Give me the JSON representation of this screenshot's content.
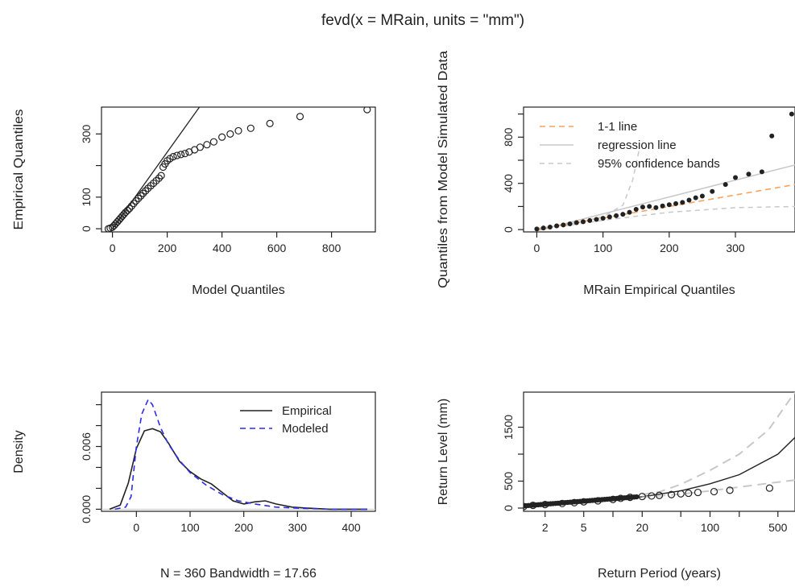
{
  "title": "fevd(x = MRain, units = \"mm\")",
  "colors": {
    "ink": "#222222",
    "orange": "#f5a25d",
    "grey": "#c8c8c8",
    "blue": "#2b2bf0"
  },
  "chart_data": [
    {
      "id": "qq-model",
      "type": "scatter",
      "xlabel": "Model Quantiles",
      "ylabel": "Empirical Quantiles",
      "xlim": [
        -40,
        960
      ],
      "ylim": [
        -10,
        385
      ],
      "xticks": [
        0,
        200,
        400,
        600,
        800
      ],
      "yticks": [
        0,
        100,
        200,
        300
      ],
      "ytick_labels": [
        "0",
        "100",
        "",
        "300"
      ],
      "marker": "open-circle",
      "points": [
        [
          -15,
          0
        ],
        [
          -8,
          2
        ],
        [
          0,
          5
        ],
        [
          6,
          10
        ],
        [
          12,
          16
        ],
        [
          18,
          22
        ],
        [
          24,
          28
        ],
        [
          30,
          34
        ],
        [
          36,
          40
        ],
        [
          42,
          46
        ],
        [
          48,
          52
        ],
        [
          55,
          58
        ],
        [
          62,
          64
        ],
        [
          70,
          72
        ],
        [
          78,
          80
        ],
        [
          86,
          88
        ],
        [
          95,
          96
        ],
        [
          104,
          104
        ],
        [
          112,
          112
        ],
        [
          121,
          120
        ],
        [
          130,
          128
        ],
        [
          140,
          136
        ],
        [
          150,
          144
        ],
        [
          160,
          152
        ],
        [
          170,
          160
        ],
        [
          178,
          168
        ],
        [
          185,
          195
        ],
        [
          192,
          205
        ],
        [
          200,
          215
        ],
        [
          210,
          222
        ],
        [
          222,
          228
        ],
        [
          236,
          232
        ],
        [
          250,
          235
        ],
        [
          265,
          238
        ],
        [
          280,
          243
        ],
        [
          300,
          250
        ],
        [
          320,
          258
        ],
        [
          345,
          266
        ],
        [
          370,
          275
        ],
        [
          400,
          290
        ],
        [
          430,
          300
        ],
        [
          460,
          310
        ],
        [
          505,
          318
        ],
        [
          575,
          333
        ],
        [
          685,
          355
        ],
        [
          930,
          377
        ]
      ],
      "fit_line": [
        [
          0,
          0
        ],
        [
          330,
          400
        ]
      ]
    },
    {
      "id": "qq-simulated",
      "type": "scatter",
      "xlabel": "MRain Empirical Quantiles",
      "ylabel": "Quantiles from Model Simulated Data",
      "xlim": [
        -20,
        390
      ],
      "ylim": [
        -20,
        1060
      ],
      "xticks": [
        0,
        100,
        200,
        300
      ],
      "yticks": [
        0,
        400,
        800
      ],
      "yticks_minor": [
        200,
        600,
        1000
      ],
      "marker": "filled-circle",
      "legend": {
        "position": "top-left",
        "entries": [
          "1-1 line",
          "regression line",
          "95% confidence bands"
        ],
        "colors": [
          "#f5a25d",
          "#c8c8c8",
          "#c8c8c8"
        ]
      },
      "points": [
        [
          0,
          5
        ],
        [
          10,
          14
        ],
        [
          20,
          22
        ],
        [
          30,
          32
        ],
        [
          40,
          40
        ],
        [
          50,
          50
        ],
        [
          60,
          60
        ],
        [
          70,
          68
        ],
        [
          80,
          78
        ],
        [
          90,
          88
        ],
        [
          100,
          98
        ],
        [
          110,
          110
        ],
        [
          120,
          120
        ],
        [
          130,
          132
        ],
        [
          140,
          150
        ],
        [
          150,
          175
        ],
        [
          160,
          195
        ],
        [
          170,
          200
        ],
        [
          180,
          190
        ],
        [
          190,
          205
        ],
        [
          200,
          215
        ],
        [
          210,
          225
        ],
        [
          220,
          235
        ],
        [
          230,
          255
        ],
        [
          240,
          275
        ],
        [
          250,
          290
        ],
        [
          265,
          330
        ],
        [
          285,
          390
        ],
        [
          300,
          450
        ],
        [
          320,
          480
        ],
        [
          340,
          500
        ],
        [
          355,
          810
        ],
        [
          385,
          1000
        ]
      ],
      "one_to_one": [
        [
          0,
          0
        ],
        [
          390,
          390
        ]
      ],
      "regression": [
        [
          0,
          -10
        ],
        [
          390,
          560
        ]
      ],
      "band_upper": [
        [
          0,
          10
        ],
        [
          50,
          50
        ],
        [
          100,
          110
        ],
        [
          130,
          210
        ],
        [
          145,
          430
        ],
        [
          155,
          700
        ]
      ],
      "band_lower": [
        [
          0,
          -5
        ],
        [
          100,
          80
        ],
        [
          200,
          150
        ],
        [
          300,
          190
        ],
        [
          390,
          200
        ]
      ]
    },
    {
      "id": "density",
      "type": "line",
      "xlabel": "N = 360   Bandwidth = 17.66",
      "ylabel": "Density",
      "xlim": [
        -65,
        445
      ],
      "ylim": [
        -0.0002,
        0.0112
      ],
      "xticks": [
        0,
        100,
        200,
        300,
        400
      ],
      "yticks": [
        0.0,
        0.006
      ],
      "ytick_labels": [
        "0.000",
        "0.006"
      ],
      "yticks_minor": [
        0.002,
        0.004,
        0.008,
        0.01
      ],
      "legend": {
        "position": "top-right",
        "entries": [
          "Empirical",
          "Modeled"
        ]
      },
      "series": [
        {
          "name": "Empirical",
          "style": "solid",
          "color": "#222222",
          "points": [
            [
              -50,
              0
            ],
            [
              -30,
              0.0004
            ],
            [
              -15,
              0.0025
            ],
            [
              0,
              0.0058
            ],
            [
              15,
              0.0075
            ],
            [
              30,
              0.0077
            ],
            [
              45,
              0.0074
            ],
            [
              60,
              0.0063
            ],
            [
              80,
              0.0046
            ],
            [
              100,
              0.0036
            ],
            [
              120,
              0.0029
            ],
            [
              140,
              0.0024
            ],
            [
              160,
              0.0016
            ],
            [
              180,
              0.0008
            ],
            [
              200,
              0.0005
            ],
            [
              220,
              0.0007
            ],
            [
              240,
              0.0008
            ],
            [
              260,
              0.0005
            ],
            [
              290,
              0.0002
            ],
            [
              320,
              0.0001
            ],
            [
              360,
              0
            ],
            [
              430,
              0
            ]
          ]
        },
        {
          "name": "Modeled",
          "style": "dashed",
          "color": "#2b2bf0",
          "points": [
            [
              -40,
              0
            ],
            [
              -20,
              0.0002
            ],
            [
              -10,
              0.0012
            ],
            [
              0,
              0.006
            ],
            [
              10,
              0.0091
            ],
            [
              22,
              0.0105
            ],
            [
              30,
              0.01
            ],
            [
              45,
              0.0078
            ],
            [
              60,
              0.0062
            ],
            [
              80,
              0.0047
            ],
            [
              100,
              0.0035
            ],
            [
              130,
              0.0023
            ],
            [
              160,
              0.0014
            ],
            [
              190,
              0.0008
            ],
            [
              220,
              0.0005
            ],
            [
              260,
              0.0002
            ],
            [
              300,
              0.0001
            ],
            [
              360,
              0
            ],
            [
              430,
              0
            ]
          ]
        }
      ]
    },
    {
      "id": "return-level",
      "type": "line",
      "xscale": "log",
      "xlabel": "Return Period (years)",
      "ylabel": "Return Level (mm)",
      "xlim": [
        1.2,
        750
      ],
      "ylim": [
        -60,
        2150
      ],
      "xticks": [
        2,
        5,
        20,
        100,
        500
      ],
      "xticks_minor": [
        10,
        50,
        200
      ],
      "yticks": [
        0,
        500,
        1500
      ],
      "yticks_minor": [
        1000
      ],
      "series": [
        {
          "name": "",
          "style": "solid",
          "color": "#222222",
          "points": [
            [
              1.2,
              30
            ],
            [
              2,
              70
            ],
            [
              5,
              115
            ],
            [
              10,
              160
            ],
            [
              20,
              210
            ],
            [
              50,
              320
            ],
            [
              100,
              450
            ],
            [
              200,
              620
            ],
            [
              500,
              1000
            ],
            [
              750,
              1310
            ]
          ]
        },
        {
          "name": "",
          "style": "dashed",
          "color": "#c8c8c8",
          "points": [
            [
              20,
              250
            ],
            [
              30,
              300
            ],
            [
              50,
              440
            ],
            [
              100,
              700
            ],
            [
              200,
              1000
            ],
            [
              400,
              1450
            ],
            [
              750,
              2150
            ]
          ]
        },
        {
          "name": "",
          "style": "dashed",
          "color": "#c8c8c8",
          "points": [
            [
              20,
              200
            ],
            [
              50,
              260
            ],
            [
              100,
              320
            ],
            [
              200,
              390
            ],
            [
              400,
              460
            ],
            [
              750,
              520
            ]
          ]
        }
      ],
      "markers": [
        [
          1.2,
          28
        ],
        [
          1.5,
          50
        ],
        [
          2,
          65
        ],
        [
          3,
          85
        ],
        [
          4,
          100
        ],
        [
          5,
          115
        ],
        [
          7,
          135
        ],
        [
          10,
          160
        ],
        [
          12,
          180
        ],
        [
          15,
          200
        ],
        [
          20,
          215
        ],
        [
          25,
          225
        ],
        [
          30,
          235
        ],
        [
          40,
          250
        ],
        [
          50,
          265
        ],
        [
          60,
          275
        ],
        [
          75,
          290
        ],
        [
          110,
          305
        ],
        [
          160,
          330
        ],
        [
          410,
          370
        ]
      ]
    }
  ]
}
